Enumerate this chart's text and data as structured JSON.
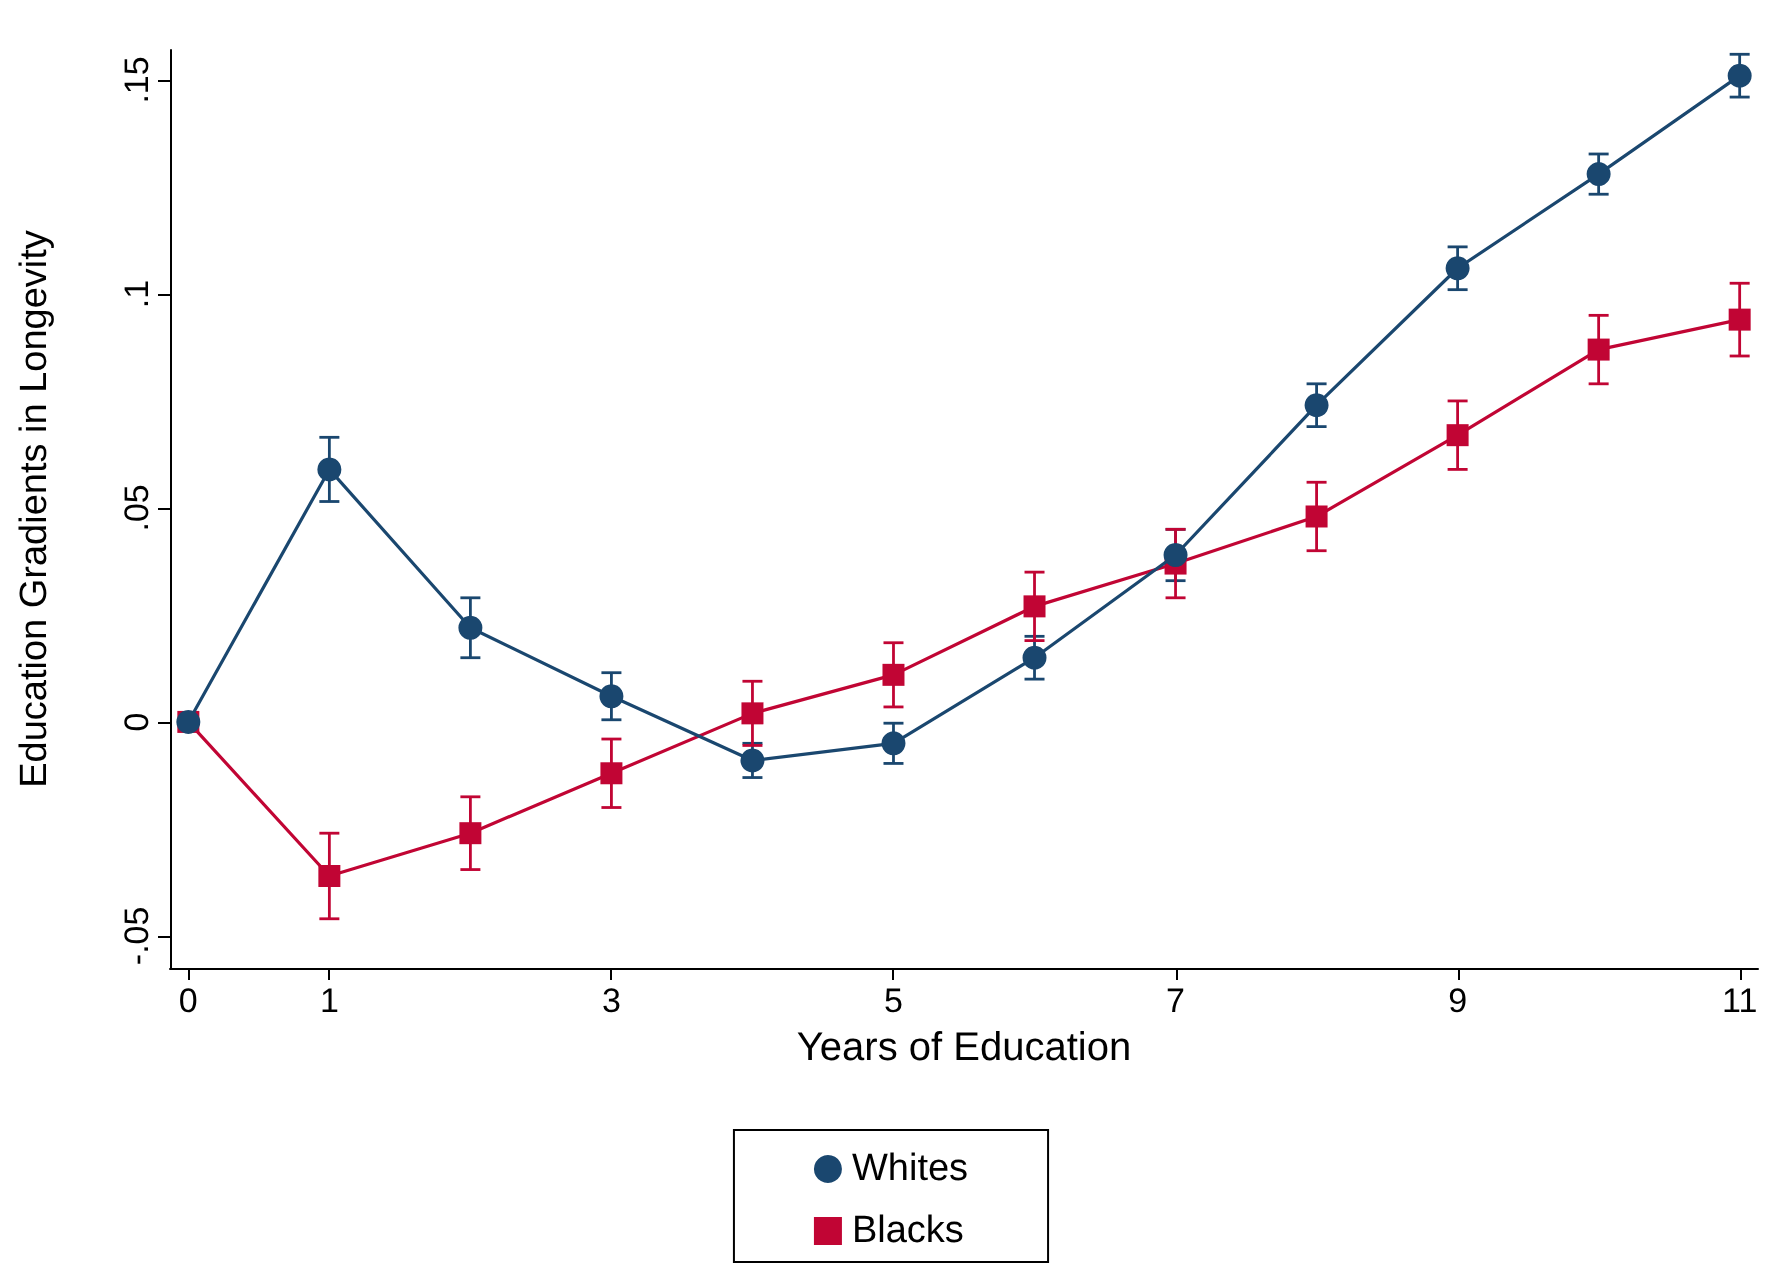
{
  "chart_data": {
    "type": "line",
    "xlabel": "Years of Education",
    "ylabel": "Education Gradients in Longevity",
    "x": [
      0,
      1,
      2,
      3,
      4,
      5,
      6,
      7,
      8,
      9,
      10,
      11
    ],
    "series": [
      {
        "name": "Whites",
        "color": "#1a476f",
        "marker": "circle",
        "values": [
          0,
          0.059,
          0.022,
          0.006,
          -0.009,
          -0.005,
          0.015,
          0.039,
          0.074,
          0.106,
          0.128,
          0.151
        ],
        "errors": [
          null,
          0.0075,
          0.007,
          0.0055,
          0.004,
          0.0047,
          0.005,
          0.006,
          0.005,
          0.005,
          0.0047,
          0.005
        ]
      },
      {
        "name": "Blacks",
        "color": "#c10534",
        "marker": "square",
        "values": [
          0,
          -0.036,
          -0.026,
          -0.012,
          0.002,
          0.011,
          0.027,
          0.037,
          0.048,
          0.067,
          0.087,
          0.094
        ],
        "errors": [
          null,
          0.01,
          0.0085,
          0.008,
          0.0075,
          0.0075,
          0.008,
          0.008,
          0.008,
          0.008,
          0.008,
          0.0085
        ]
      }
    ],
    "xlim": [
      -0.13,
      11.13
    ],
    "xticks": [
      0,
      1,
      3,
      5,
      7,
      9,
      11
    ],
    "ylim": [
      -0.0575,
      0.157
    ],
    "yticks": [
      {
        "value": -0.05,
        "label": "-.05"
      },
      {
        "value": 0,
        "label": "0"
      },
      {
        "value": 0.05,
        "label": ".05"
      },
      {
        "value": 0.1,
        "label": ".1"
      },
      {
        "value": 0.15,
        "label": ".15"
      }
    ],
    "grid": false,
    "legend": "bottom"
  }
}
